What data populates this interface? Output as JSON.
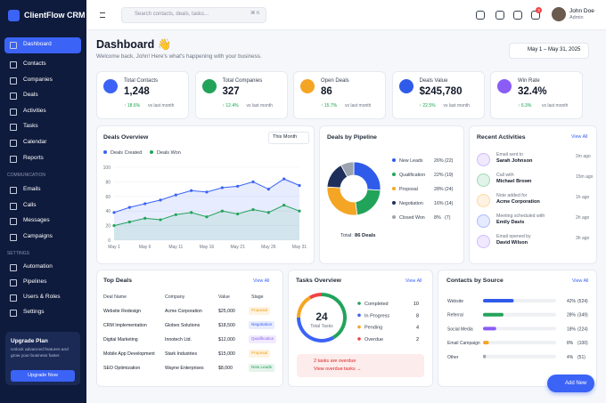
{
  "sidebar": {
    "brand": "ClientFlow CRM",
    "nav": [
      "Dashboard",
      "Contacts",
      "Companies",
      "Deals",
      "Activities",
      "Tasks",
      "Calendar",
      "Reports"
    ],
    "communication_label": "COMMUNICATION",
    "communication": [
      "Emails",
      "Calls",
      "Messages",
      "Campaigns"
    ],
    "settings_label": "SETTINGS",
    "settings": [
      "Automation",
      "Pipelines",
      "Users & Roles",
      "Settings"
    ],
    "upgrade": {
      "title": "Upgrade Plan",
      "text": "Unlock advanced features and grow your business faster.",
      "button": "Upgrade Now"
    }
  },
  "topbar": {
    "search": "Search contacts, deals, tasks...",
    "shortcut": "⌘ K",
    "notifications": "3",
    "user": {
      "name": "John Doe",
      "role": "Admin"
    }
  },
  "header": {
    "title": "Dashboard 👋",
    "subtitle": "Welcome back, John! Here's what's happening with your business.",
    "date_range": "May 1 – May 31, 2025"
  },
  "stats": [
    {
      "label": "Total Contacts",
      "value": "1,248",
      "change": "↑ 18.6%",
      "note": "vs last month",
      "color": "#3b63f6"
    },
    {
      "label": "Total Companies",
      "value": "327",
      "change": "↑ 12.4%",
      "note": "vs last month",
      "color": "#22a35a"
    },
    {
      "label": "Open Deals",
      "value": "86",
      "change": "↑ 15.7%",
      "note": "vs last month",
      "color": "#f5a524"
    },
    {
      "label": "Deals Value",
      "value": "$245,780",
      "change": "↑ 22.5%",
      "note": "vs last month",
      "color": "#2f5bea"
    },
    {
      "label": "Win Rate",
      "value": "32.4%",
      "change": "↑ 6.3%",
      "note": "vs last month",
      "color": "#8b5cf6"
    }
  ],
  "deals_overview": {
    "title": "Deals Overview",
    "period": "This Month",
    "chart_data": {
      "type": "line",
      "categories": [
        "May 1",
        null,
        "May 6",
        null,
        "May 11",
        null,
        "May 16",
        null,
        "May 21",
        null,
        "May 26",
        null,
        "May 31"
      ],
      "series": [
        {
          "name": "Deals Created",
          "color": "#3b63f6",
          "values": [
            38,
            45,
            50,
            55,
            62,
            68,
            66,
            72,
            74,
            80,
            70,
            84,
            75
          ]
        },
        {
          "name": "Deals Won",
          "color": "#22a35a",
          "values": [
            20,
            25,
            30,
            28,
            35,
            38,
            32,
            40,
            36,
            42,
            38,
            48,
            40
          ]
        }
      ],
      "ylim": [
        0,
        100
      ],
      "yticks": [
        0,
        20,
        40,
        60,
        80,
        100
      ],
      "grid": true
    }
  },
  "pipeline": {
    "title": "Deals by Pipeline",
    "chart_data": {
      "type": "pie",
      "categories": [
        "New Leads",
        "Qualification",
        "Proposal",
        "Negotiation",
        "Closed Won"
      ],
      "values": [
        26,
        22,
        28,
        16,
        8
      ],
      "value_labels": [
        "26%",
        "22%",
        "28%",
        "16%",
        "8%"
      ],
      "counts": [
        "(22)",
        "(19)",
        "(24)",
        "(14)",
        "(7)"
      ],
      "colors": [
        "#2f5bea",
        "#22a35a",
        "#f5a524",
        "#1e2f5c",
        "#9ca3af"
      ]
    },
    "total_label": "Total:",
    "total": "86 Deals"
  },
  "activities": {
    "title": "Recent Activities",
    "view_all": "View All",
    "items": [
      {
        "action": "Email sent to",
        "who": "Sarah Johnson",
        "time": "2m ago",
        "color": "#8b5cf6"
      },
      {
        "action": "Call with",
        "who": "Michael Brown",
        "time": "15m ago",
        "color": "#22a35a"
      },
      {
        "action": "Note added for",
        "who": "Acme Corporation",
        "time": "1h ago",
        "color": "#f5a524"
      },
      {
        "action": "Meeting scheduled with",
        "who": "Emily Davis",
        "time": "2h ago",
        "color": "#3b63f6"
      },
      {
        "action": "Email opened by",
        "who": "David Wilson",
        "time": "3h ago",
        "color": "#8b5cf6"
      }
    ]
  },
  "top_deals": {
    "title": "Top Deals",
    "view_all": "View All",
    "columns": [
      "Deal Name",
      "Company",
      "Value",
      "Stage"
    ],
    "rows": [
      [
        "Website Redesign",
        "Acme Corporation",
        "$25,000",
        "Proposal"
      ],
      [
        "CRM Implementation",
        "Globex Solutions",
        "$18,500",
        "Negotiation"
      ],
      [
        "Digital Marketing",
        "Innotech Ltd.",
        "$12,000",
        "Qualification"
      ],
      [
        "Mobile App Development",
        "Stark Industries",
        "$15,000",
        "Proposal"
      ],
      [
        "SEO Optimization",
        "Wayne Enterprises",
        "$8,000",
        "New Leads"
      ]
    ]
  },
  "tasks": {
    "title": "Tasks Overview",
    "view_all": "View All",
    "total": "24",
    "total_label": "Total Tasks",
    "items": [
      {
        "label": "Completed",
        "value": 10,
        "color": "#22a35a"
      },
      {
        "label": "In Progress",
        "value": 8,
        "color": "#3b63f6"
      },
      {
        "label": "Pending",
        "value": 4,
        "color": "#f5a524"
      },
      {
        "label": "Overdue",
        "value": 2,
        "color": "#ef4444"
      }
    ],
    "alert": "2 tasks are overdue",
    "alert_link": "View overdue tasks →"
  },
  "contacts_source": {
    "title": "Contacts by Source",
    "view_all": "View All",
    "chart_data": {
      "type": "bar",
      "categories": [
        "Website",
        "Referral",
        "Social Media",
        "Email Campaign",
        "Other"
      ],
      "values": [
        42,
        28,
        18,
        8,
        4
      ],
      "value_labels": [
        "42%",
        "28%",
        "18%",
        "8%",
        "4%"
      ],
      "counts": [
        "(524)",
        "(349)",
        "(224)",
        "(100)",
        "(51)"
      ],
      "colors": [
        "#2f5bea",
        "#22a35a",
        "#8b5cf6",
        "#f5a524",
        "#9ca3af"
      ],
      "xlim": [
        0,
        100
      ]
    }
  },
  "add_button": "Add New"
}
